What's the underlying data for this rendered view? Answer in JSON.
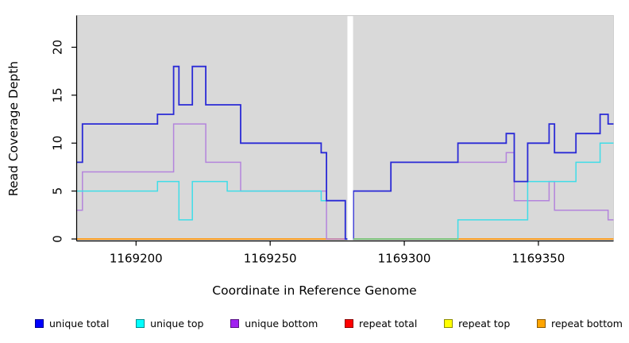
{
  "figure": {
    "background": "#ffffff",
    "panel_background": "#d9d9d9",
    "panel_border": "#c6c6c6",
    "axis_color": "#000000",
    "gap_color": "#ffffff"
  },
  "chart_data": {
    "type": "line",
    "subtype": "step-coverage",
    "title": "",
    "xlabel": "Coordinate in Reference Genome",
    "ylabel": "Read Coverage Depth",
    "xlim": [
      1169178,
      1169378
    ],
    "ylim": [
      0,
      23.3
    ],
    "x_ticks": [
      1169200,
      1169250,
      1169300,
      1169350
    ],
    "y_ticks": [
      0,
      5,
      10,
      15,
      20
    ],
    "grid": false,
    "legend_position": "bottom",
    "gap": {
      "start": 1169278.8,
      "end": 1169280.9,
      "note": "white band, no data"
    },
    "series": [
      {
        "name": "unique total",
        "color": "#2a2ad6",
        "legend_color": "#0000ff",
        "width": 1.8,
        "z": 6,
        "points": [
          [
            1169178,
            8
          ],
          [
            1169180,
            12
          ],
          [
            1169208,
            13
          ],
          [
            1169214,
            18
          ],
          [
            1169216,
            14
          ],
          [
            1169221,
            18
          ],
          [
            1169226,
            14
          ],
          [
            1169239,
            10
          ],
          [
            1169269,
            9
          ],
          [
            1169271,
            4
          ],
          [
            1169278,
            0
          ],
          [
            1169281,
            5
          ],
          [
            1169295,
            8
          ],
          [
            1169320,
            10
          ],
          [
            1169338,
            11
          ],
          [
            1169341,
            6
          ],
          [
            1169346,
            10
          ],
          [
            1169354,
            12
          ],
          [
            1169356,
            9
          ],
          [
            1169364,
            11
          ],
          [
            1169373,
            13
          ],
          [
            1169376,
            12
          ]
        ]
      },
      {
        "name": "unique top",
        "color": "#3fdde8",
        "legend_color": "#00ffff",
        "width": 1.5,
        "z": 5,
        "points": [
          [
            1169178,
            5
          ],
          [
            1169208,
            6
          ],
          [
            1169216,
            2
          ],
          [
            1169221,
            6
          ],
          [
            1169234,
            5
          ],
          [
            1169269,
            4
          ],
          [
            1169278,
            0
          ],
          [
            1169320,
            2
          ],
          [
            1169346,
            6
          ],
          [
            1169364,
            8
          ],
          [
            1169373,
            10
          ]
        ]
      },
      {
        "name": "unique bottom",
        "color": "#b484dc",
        "legend_color": "#a020f0",
        "width": 1.5,
        "z": 4,
        "points": [
          [
            1169178,
            3
          ],
          [
            1169180,
            7
          ],
          [
            1169214,
            12
          ],
          [
            1169226,
            8
          ],
          [
            1169239,
            5
          ],
          [
            1169271,
            0
          ],
          [
            1169281,
            5
          ],
          [
            1169295,
            8
          ],
          [
            1169338,
            9
          ],
          [
            1169341,
            4
          ],
          [
            1169354,
            6
          ],
          [
            1169356,
            3
          ],
          [
            1169376,
            2
          ]
        ]
      },
      {
        "name": "repeat total",
        "color": "#e03030",
        "legend_color": "#ff0000",
        "width": 1.5,
        "z": 1,
        "points": [
          [
            1169178,
            0
          ]
        ]
      },
      {
        "name": "repeat top",
        "color": "#e8e838",
        "legend_color": "#ffff00",
        "width": 1.5,
        "z": 2,
        "points": [
          [
            1169178,
            0
          ]
        ]
      },
      {
        "name": "repeat bottom",
        "color": "#ff9d1e",
        "legend_color": "#ffa500",
        "width": 1.7,
        "z": 3,
        "points": [
          [
            1169178,
            0
          ]
        ]
      }
    ],
    "overlays": [
      {
        "name": "baseline blend (top-strand at zero)",
        "color": "#7cc57c",
        "from": 1169281,
        "to": 1169320,
        "value": 0,
        "width": 1.7
      }
    ]
  },
  "legend": {
    "items": [
      {
        "label": "unique total",
        "color": "#0000ff"
      },
      {
        "label": "unique top",
        "color": "#00ffff"
      },
      {
        "label": "unique bottom",
        "color": "#a020f0"
      },
      {
        "label": "repeat total",
        "color": "#ff0000"
      },
      {
        "label": "repeat top",
        "color": "#ffff00"
      },
      {
        "label": "repeat bottom",
        "color": "#ffa500"
      }
    ]
  }
}
